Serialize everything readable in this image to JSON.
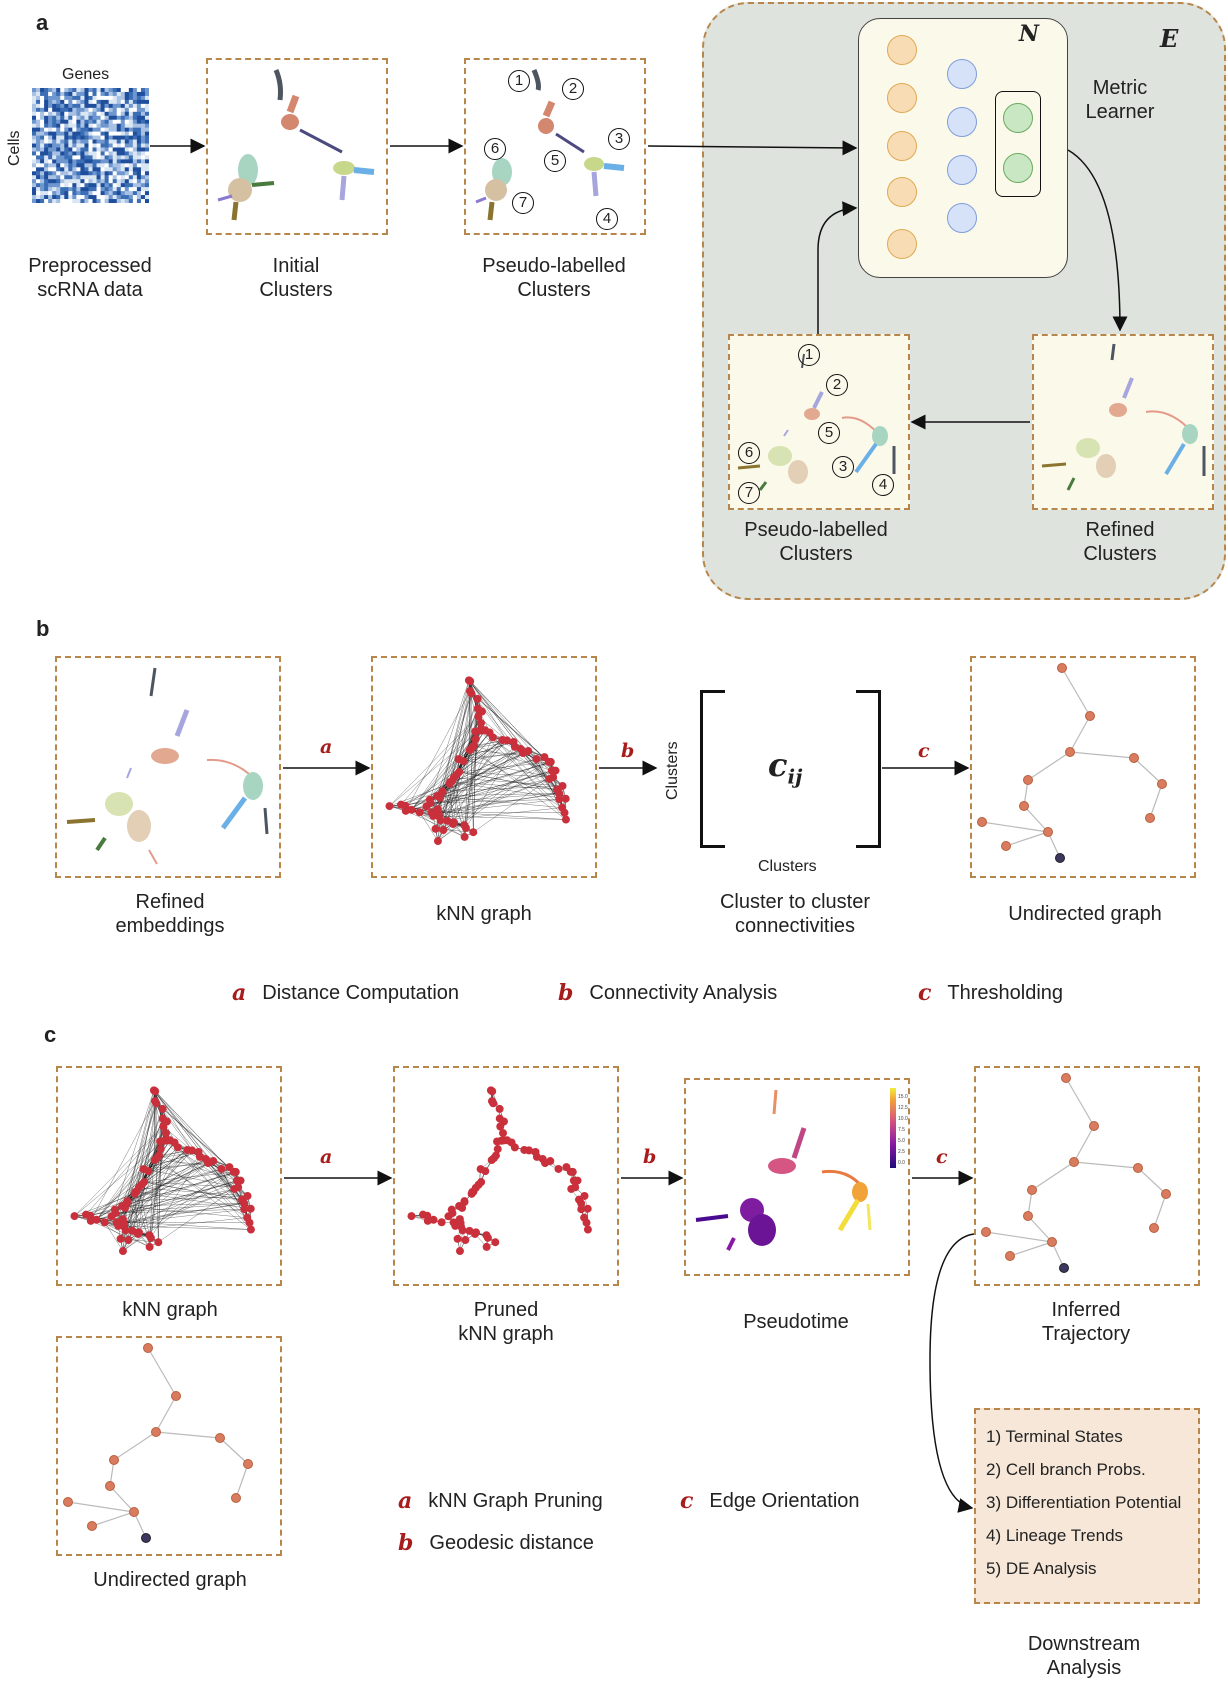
{
  "panels": {
    "a": "a",
    "b": "b",
    "c": "c"
  },
  "a": {
    "genes_label": "Genes",
    "cells_label": "Cells",
    "captions": {
      "preprocessed": "Preprocessed\nscRNA data",
      "initial": "Initial\nClusters",
      "pseudo": "Pseudo-labelled\nClusters",
      "pseudo2": "Pseudo-labelled\nClusters",
      "refined": "Refined\nClusters",
      "metric": "Metric\nLearner"
    },
    "n_label": "N",
    "e_label": "E",
    "cluster_numbers": [
      "1",
      "2",
      "3",
      "4",
      "5",
      "6",
      "7"
    ]
  },
  "b": {
    "captions": {
      "refined_emb": "Refined\nembeddings",
      "knn": "kNN graph",
      "c2c": "Cluster to cluster\nconnectivities",
      "undirected": "Undirected graph"
    },
    "matrix_entry": "c",
    "matrix_sub": "ij",
    "axis_clusters_y": "Clusters",
    "axis_clusters_x": "Clusters",
    "arrows": [
      "a",
      "b",
      "c"
    ],
    "legend": [
      {
        "sym": "a",
        "text": "Distance Computation"
      },
      {
        "sym": "b",
        "text": "Connectivity Analysis"
      },
      {
        "sym": "c",
        "text": "Thresholding"
      }
    ]
  },
  "c": {
    "captions": {
      "knn": "kNN graph",
      "pruned": "Pruned\nkNN graph",
      "pseudotime": "Pseudotime",
      "inferred": "Inferred\nTrajectory",
      "undirected": "Undirected graph",
      "downstream": "Downstream\nAnalysis"
    },
    "arrows": [
      "a",
      "b",
      "c"
    ],
    "legend": [
      {
        "sym": "a",
        "text": "kNN Graph Pruning"
      },
      {
        "sym": "b",
        "text": "Geodesic distance"
      },
      {
        "sym": "c",
        "text": "Edge Orientation"
      }
    ],
    "downstream_items": [
      "1) Terminal States",
      "2) Cell branch Probs.",
      "3) Differentiation Potential",
      "4) Lineage Trends",
      "5) DE Analysis"
    ],
    "colorbar_ticks": [
      "15.0",
      "12.5",
      "10.0",
      "7.5",
      "5.0",
      "2.5",
      "0.0"
    ]
  },
  "colors": {
    "accent_red": "#a81c1c",
    "dashed_border": "#b8864b",
    "node_orange": "#f8dcb4",
    "node_blue": "#d6e2f8",
    "node_green": "#c9e7c3",
    "graph_node": "#d97b5f",
    "knn_node": "#c9303c"
  }
}
